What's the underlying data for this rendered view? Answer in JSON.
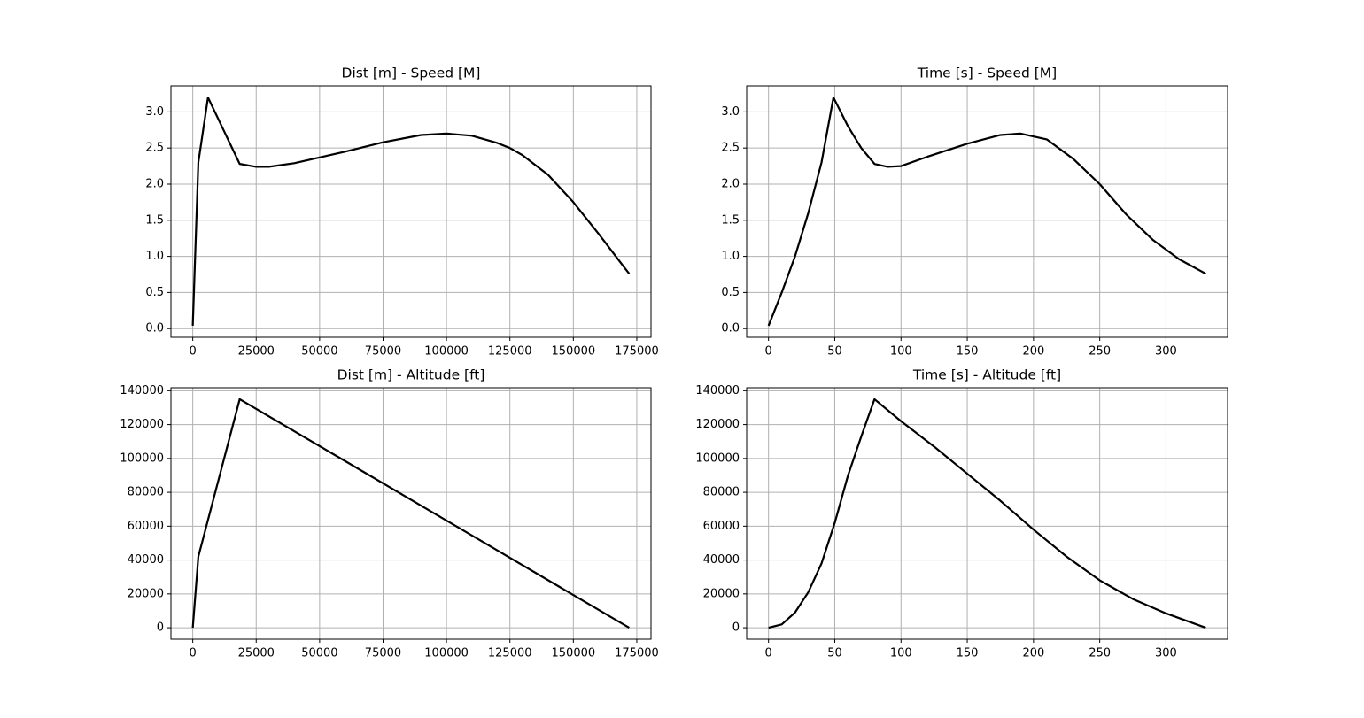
{
  "chart_data": [
    {
      "type": "line",
      "title": "Dist [m] - Speed [M]",
      "x": [
        0,
        2200,
        6000,
        18500,
        25000,
        30000,
        40000,
        50000,
        60000,
        75000,
        90000,
        100000,
        110000,
        120000,
        125000,
        130000,
        140000,
        150000,
        160000,
        170000,
        172000
      ],
      "values": [
        0.04,
        2.3,
        3.2,
        2.28,
        2.24,
        2.24,
        2.29,
        2.37,
        2.45,
        2.58,
        2.68,
        2.7,
        2.67,
        2.57,
        2.5,
        2.4,
        2.13,
        1.75,
        1.31,
        0.85,
        0.76
      ],
      "color": "#000000",
      "grid": true,
      "xlim": [
        -8600,
        180600
      ],
      "ylim": [
        -0.12,
        3.36
      ],
      "xticks": [
        0,
        25000,
        50000,
        75000,
        100000,
        125000,
        150000,
        175000
      ],
      "yticks": [
        {
          "value": 0,
          "label": "0.0"
        },
        0.5,
        {
          "value": 1,
          "label": "1.0"
        },
        1.5,
        {
          "value": 2,
          "label": "2.0"
        },
        2.5,
        {
          "value": 3,
          "label": "3.0"
        }
      ]
    },
    {
      "type": "line",
      "title": "Time [s] - Speed [M]",
      "x": [
        0,
        10,
        20,
        30,
        40,
        49,
        60,
        70,
        80,
        90,
        100,
        120,
        150,
        175,
        190,
        210,
        230,
        250,
        270,
        290,
        310,
        330
      ],
      "values": [
        0.04,
        0.5,
        1.0,
        1.6,
        2.3,
        3.2,
        2.8,
        2.5,
        2.28,
        2.24,
        2.25,
        2.38,
        2.56,
        2.68,
        2.7,
        2.62,
        2.35,
        2.0,
        1.58,
        1.23,
        0.96,
        0.76
      ],
      "color": "#000000",
      "grid": true,
      "xlim": [
        -16.5,
        346.5
      ],
      "ylim": [
        -0.12,
        3.36
      ],
      "xticks": [
        0,
        50,
        100,
        150,
        200,
        250,
        300
      ],
      "yticks": [
        {
          "value": 0,
          "label": "0.0"
        },
        0.5,
        {
          "value": 1,
          "label": "1.0"
        },
        1.5,
        {
          "value": 2,
          "label": "2.0"
        },
        2.5,
        {
          "value": 3,
          "label": "3.0"
        }
      ]
    },
    {
      "type": "line",
      "title": "Dist [m] - Altitude [ft]",
      "x": [
        0,
        2200,
        18500,
        172000
      ],
      "values": [
        0,
        42000,
        135000,
        0
      ],
      "color": "#000000",
      "grid": true,
      "xlim": [
        -8600,
        180600
      ],
      "ylim": [
        -6750,
        141750
      ],
      "xticks": [
        0,
        25000,
        50000,
        75000,
        100000,
        125000,
        150000,
        175000
      ],
      "yticks": [
        0,
        20000,
        40000,
        60000,
        80000,
        100000,
        120000,
        140000
      ]
    },
    {
      "type": "line",
      "title": "Time [s] - Altitude [ft]",
      "x": [
        0,
        10,
        20,
        30,
        40,
        50,
        60,
        70,
        80,
        100,
        125,
        150,
        175,
        200,
        225,
        250,
        275,
        300,
        330
      ],
      "values": [
        0,
        2000,
        9000,
        21000,
        38000,
        62000,
        90000,
        113000,
        135000,
        122000,
        107000,
        91000,
        75000,
        58000,
        42000,
        28000,
        17000,
        8500,
        0
      ],
      "color": "#000000",
      "grid": true,
      "xlim": [
        -16.5,
        346.5
      ],
      "ylim": [
        -6750,
        141750
      ],
      "xticks": [
        0,
        50,
        100,
        150,
        200,
        250,
        300
      ],
      "yticks": [
        0,
        20000,
        40000,
        60000,
        80000,
        100000,
        120000,
        140000
      ]
    }
  ]
}
